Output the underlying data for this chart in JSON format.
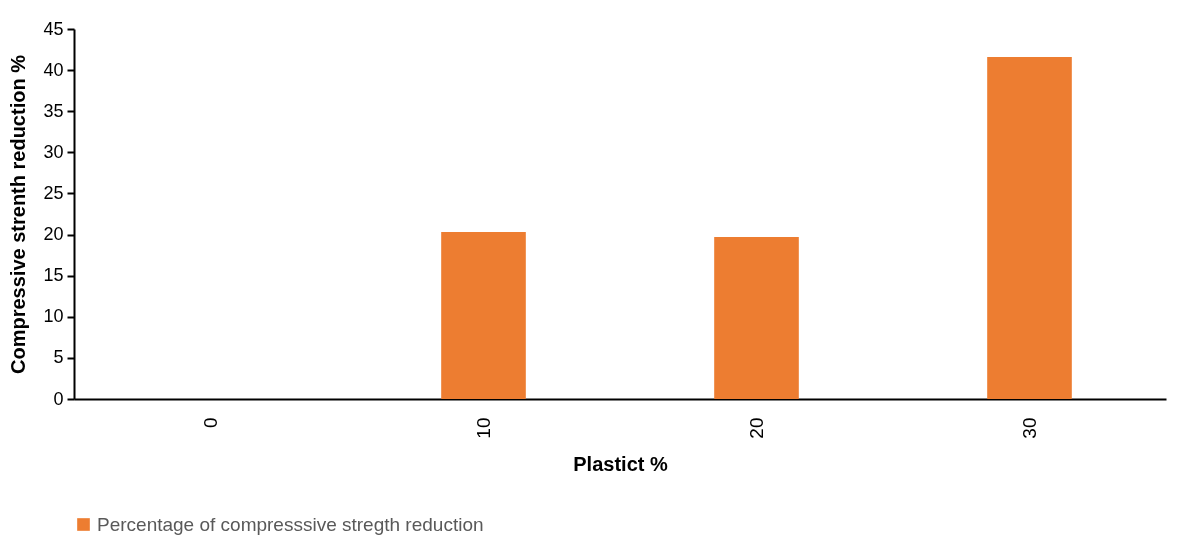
{
  "chart_data": {
    "type": "bar",
    "xlabel": "Plastict %",
    "ylabel": "Compressive strenth reduction %",
    "categories": [
      "0",
      "10",
      "20",
      "30"
    ],
    "series": [
      {
        "name": "Percentage of compresssive stregth reduction",
        "color": "#ed7d31",
        "values": [
          0,
          20.3,
          19.7,
          41.6
        ]
      }
    ],
    "ylim": [
      0,
      45
    ],
    "yticks": [
      0,
      5,
      10,
      15,
      20,
      25,
      30,
      35,
      40,
      45
    ],
    "grid": false,
    "legend": "bottom"
  }
}
